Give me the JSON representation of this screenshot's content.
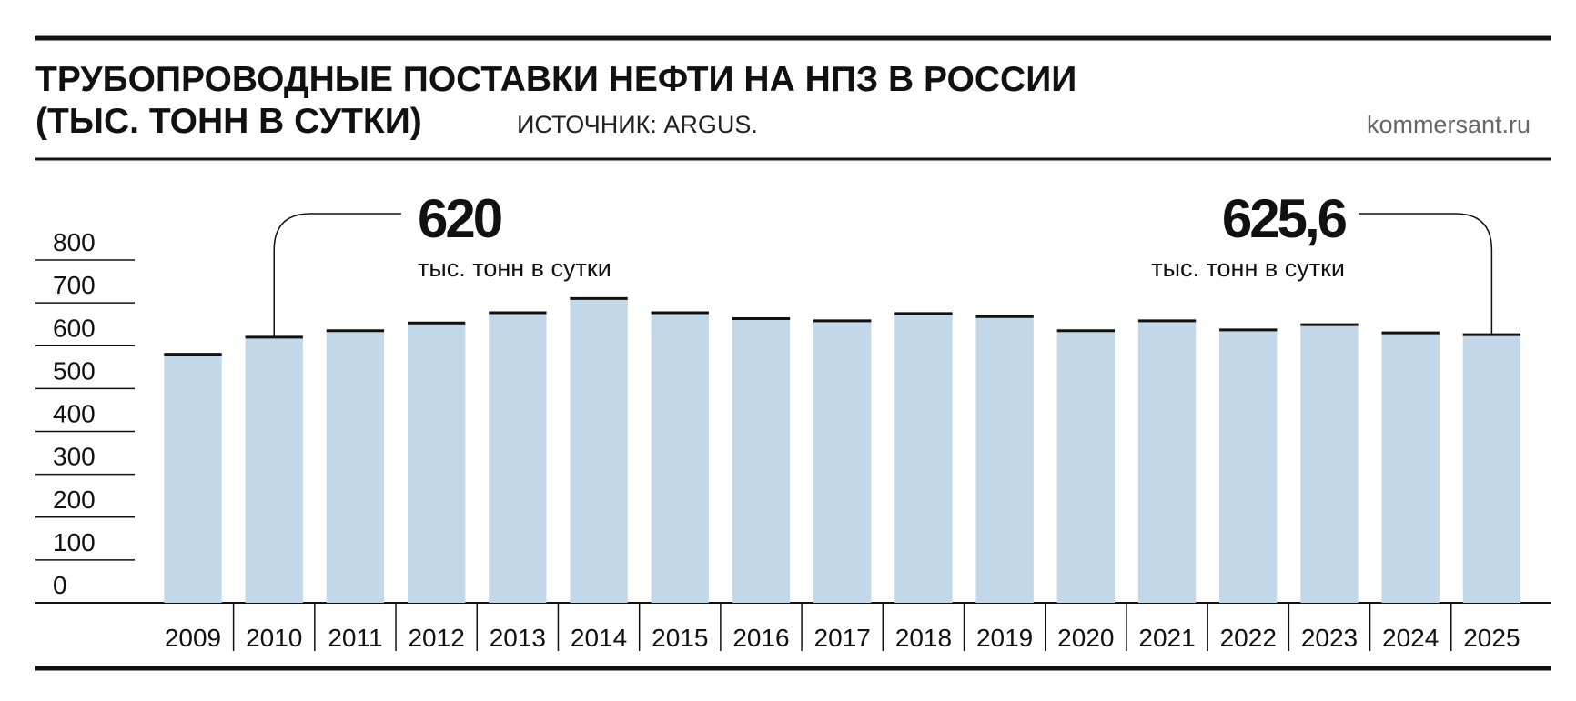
{
  "chart_data": {
    "type": "bar",
    "title": [
      "ТРУБОПРОВОДНЫЕ ПОСТАВКИ НЕФТИ НА НПЗ В РОССИИ",
      "(ТЫС. ТОНН В СУТКИ)"
    ],
    "subtitle": "ИСТОЧНИК: ARGUS.",
    "source": "kommersant.ru",
    "categories": [
      "2009",
      "2010",
      "2011",
      "2012",
      "2013",
      "2014",
      "2015",
      "2016",
      "2017",
      "2018",
      "2019",
      "2020",
      "2021",
      "2022",
      "2023",
      "2024",
      "2025"
    ],
    "values": [
      580,
      620,
      635,
      653,
      677,
      710,
      677,
      663,
      658,
      675,
      668,
      635,
      658,
      637,
      649,
      630,
      625.6
    ],
    "value_labels": [
      null,
      "620",
      null,
      null,
      null,
      null,
      null,
      null,
      null,
      null,
      null,
      null,
      null,
      null,
      null,
      null,
      "625,6"
    ],
    "annotation_text": "тыс. тонн в сутки",
    "color": "#c2d7e7",
    "ylim": [
      0,
      800
    ],
    "yticks": [
      0,
      100,
      200,
      300,
      400,
      500,
      600,
      700,
      800
    ]
  }
}
